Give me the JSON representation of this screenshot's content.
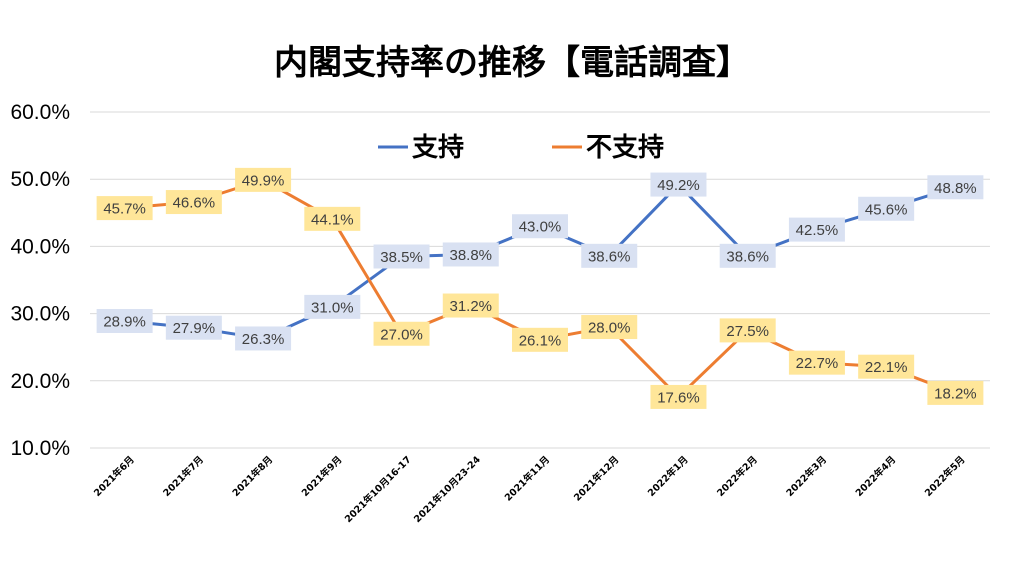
{
  "chart_data": {
    "type": "line",
    "title": "内閣支持率の推移【電話調査】",
    "xlabel": "",
    "ylabel": "",
    "categories": [
      "2021年6月",
      "2021年7月",
      "2021年8月",
      "2021年9月",
      "2021年10月16-17",
      "2021年10月23-24",
      "2021年11月",
      "2021年12月",
      "2022年1月",
      "2022年2月",
      "2022年3月",
      "2022年4月",
      "2022年5月"
    ],
    "ylim": [
      10,
      60
    ],
    "yticks": [
      10,
      20,
      30,
      40,
      50,
      60
    ],
    "ytick_labels": [
      "10.0%",
      "20.0%",
      "30.0%",
      "40.0%",
      "50.0%",
      "60.0%"
    ],
    "grid": true,
    "legend_position": "top-center",
    "series": [
      {
        "name": "支持",
        "color": "#4472C4",
        "label_bg": "#D9E1F2",
        "values": [
          28.9,
          27.9,
          26.3,
          31.0,
          38.5,
          38.8,
          43.0,
          38.6,
          49.2,
          38.6,
          42.5,
          45.6,
          48.8
        ],
        "labels": [
          "28.9%",
          "27.9%",
          "26.3%",
          "31.0%",
          "38.5%",
          "38.8%",
          "43.0%",
          "38.6%",
          "49.2%",
          "38.6%",
          "42.5%",
          "45.6%",
          "48.8%"
        ]
      },
      {
        "name": "不支持",
        "color": "#ED7D31",
        "label_bg": "#FFE699",
        "values": [
          45.7,
          46.6,
          49.9,
          44.1,
          27.0,
          31.2,
          26.1,
          28.0,
          17.6,
          27.5,
          22.7,
          22.1,
          18.2
        ],
        "labels": [
          "45.7%",
          "46.6%",
          "49.9%",
          "44.1%",
          "27.0%",
          "31.2%",
          "26.1%",
          "28.0%",
          "17.6%",
          "27.5%",
          "22.7%",
          "22.1%",
          "18.2%"
        ]
      }
    ]
  }
}
